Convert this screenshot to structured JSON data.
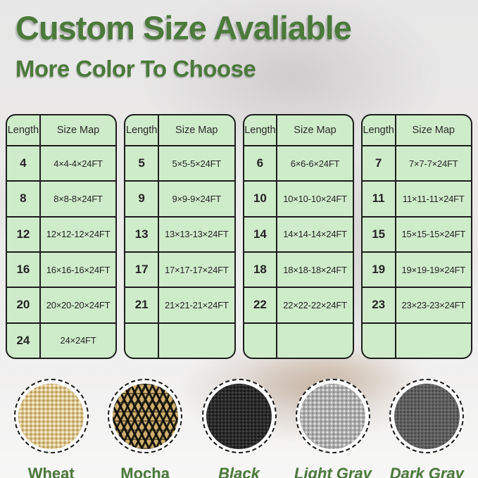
{
  "title": "Custom Size Avaliable",
  "subtitle": "More Color To Choose",
  "colors": {
    "accent_green": "#4b7a3b",
    "table_background": "#cfecca",
    "table_border": "#1c1c1c"
  },
  "tables": [
    {
      "headers": [
        "Length",
        "Size Map"
      ],
      "rows": [
        [
          "4",
          "4×4-4×24FT"
        ],
        [
          "8",
          "8×8-8×24FT"
        ],
        [
          "12",
          "12×12-12×24FT"
        ],
        [
          "16",
          "16×16-16×24FT"
        ],
        [
          "20",
          "20×20-20×24FT"
        ],
        [
          "24",
          "24×24FT"
        ]
      ]
    },
    {
      "headers": [
        "Length",
        "Size Map"
      ],
      "rows": [
        [
          "5",
          "5×5-5×24FT"
        ],
        [
          "9",
          "9×9-9×24FT"
        ],
        [
          "13",
          "13×13-13×24FT"
        ],
        [
          "17",
          "17×17-17×24FT"
        ],
        [
          "21",
          "21×21-21×24FT"
        ],
        [
          "",
          ""
        ]
      ]
    },
    {
      "headers": [
        "Length",
        "Size Map"
      ],
      "rows": [
        [
          "6",
          "6×6-6×24FT"
        ],
        [
          "10",
          "10×10-10×24FT"
        ],
        [
          "14",
          "14×14-14×24FT"
        ],
        [
          "18",
          "18×18-18×24FT"
        ],
        [
          "22",
          "22×22-22×24FT"
        ],
        [
          "",
          ""
        ]
      ]
    },
    {
      "headers": [
        "Length",
        "Size Map"
      ],
      "rows": [
        [
          "7",
          "7×7-7×24FT"
        ],
        [
          "11",
          "11×11-11×24FT"
        ],
        [
          "15",
          "15×15-15×24FT"
        ],
        [
          "19",
          "19×19-19×24FT"
        ],
        [
          "23",
          "23×23-23×24FT"
        ],
        [
          "",
          ""
        ]
      ]
    }
  ],
  "swatches": [
    {
      "label": "Wheat",
      "italic": false,
      "texture": "wheat",
      "color": "#ddc68d"
    },
    {
      "label": "Mocha",
      "italic": false,
      "texture": "mocha",
      "color": "#cfaf6e"
    },
    {
      "label": "Black",
      "italic": true,
      "texture": "black",
      "color": "#2b2b2b"
    },
    {
      "label": "Light Gray",
      "italic": true,
      "texture": "light-gray",
      "color": "#aeaeae"
    },
    {
      "label": "Dark Gray",
      "italic": true,
      "texture": "dark-gray",
      "color": "#606060"
    }
  ]
}
